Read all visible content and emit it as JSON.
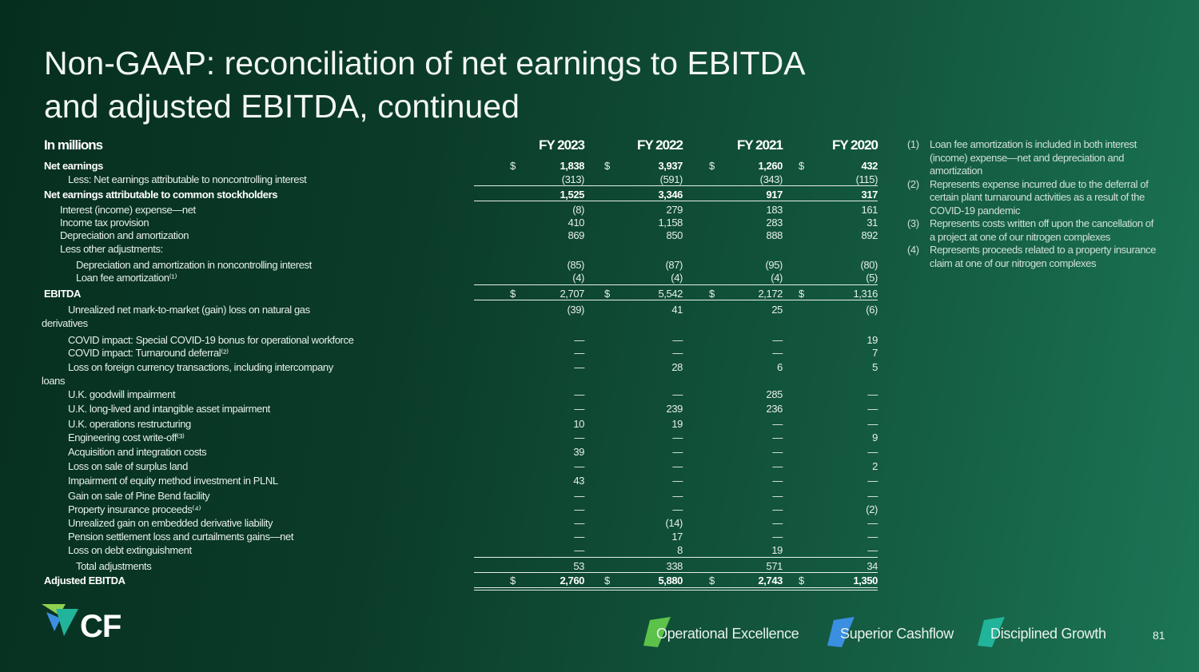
{
  "title": {
    "line1": "Non-GAAP: reconciliation of net earnings to EBITDA",
    "line2": "and adjusted EBITDA, continued"
  },
  "table": {
    "unit_label": "In millions",
    "columns": [
      "FY 2023",
      "FY 2022",
      "FY 2021",
      "FY 2020"
    ],
    "rows": [
      {
        "label": "Net earnings",
        "values": [
          "1,838",
          "3,937",
          "1,260",
          "432"
        ],
        "dollar": true,
        "bold": true
      },
      {
        "label": "Less: Net earnings attributable to noncontrolling interest",
        "values": [
          "(313)",
          "(591)",
          "(343)",
          "(115)"
        ]
      },
      {
        "label": "Net earnings attributable to common stockholders",
        "values": [
          "1,525",
          "3,346",
          "917",
          "317"
        ],
        "bold": true
      },
      {
        "label": "Interest (income) expense—net",
        "values": [
          "(8)",
          "279",
          "183",
          "161"
        ]
      },
      {
        "label": "Income tax provision",
        "values": [
          "410",
          "1,158",
          "283",
          "31"
        ]
      },
      {
        "label": "Depreciation and amortization",
        "values": [
          "869",
          "850",
          "888",
          "892"
        ]
      },
      {
        "label": "Less other adjustments:",
        "values": [
          "",
          "",
          "",
          ""
        ]
      },
      {
        "label": "Depreciation and amortization in noncontrolling interest",
        "values": [
          "(85)",
          "(87)",
          "(95)",
          "(80)"
        ]
      },
      {
        "label": "Loan fee amortization⁽¹⁾",
        "values": [
          "(4)",
          "(4)",
          "(4)",
          "(5)"
        ]
      },
      {
        "label": "EBITDA",
        "values": [
          "2,707",
          "5,542",
          "2,172",
          "1,316"
        ],
        "dollar": true
      },
      {
        "label": "Unrealized net mark-to-market (gain) loss on natural gas",
        "label_cont": "derivatives",
        "values": [
          "(39)",
          "41",
          "25",
          "(6)"
        ]
      },
      {
        "label": "COVID impact: Special COVID-19 bonus for operational workforce",
        "values": [
          "—",
          "—",
          "—",
          "19"
        ]
      },
      {
        "label": "COVID impact: Turnaround deferral⁽²⁾",
        "values": [
          "—",
          "—",
          "—",
          "7"
        ]
      },
      {
        "label": "Loss on foreign currency transactions, including intercompany",
        "label_cont": "loans",
        "values": [
          "—",
          "28",
          "6",
          "5"
        ]
      },
      {
        "label": "U.K. goodwill impairment",
        "values": [
          "—",
          "—",
          "285",
          "—"
        ]
      },
      {
        "label": "U.K. long-lived and intangible asset impairment",
        "values": [
          "—",
          "239",
          "236",
          "—"
        ]
      },
      {
        "label": "U.K. operations restructuring",
        "values": [
          "10",
          "19",
          "—",
          "—"
        ]
      },
      {
        "label": "Engineering cost write-off⁽³⁾",
        "values": [
          "—",
          "—",
          "—",
          "9"
        ]
      },
      {
        "label": "Acquisition and integration costs",
        "values": [
          "39",
          "—",
          "—",
          "—"
        ]
      },
      {
        "label": "Loss on sale of surplus land",
        "values": [
          "—",
          "—",
          "—",
          "2"
        ]
      },
      {
        "label": "Impairment of equity method investment in PLNL",
        "values": [
          "43",
          "—",
          "—",
          "—"
        ]
      },
      {
        "label": "Gain on sale of Pine Bend facility",
        "values": [
          "—",
          "—",
          "—",
          "—"
        ]
      },
      {
        "label": "Property insurance proceeds⁽⁴⁾",
        "values": [
          "—",
          "—",
          "—",
          "(2)"
        ]
      },
      {
        "label": "Unrealized gain on embedded derivative liability",
        "values": [
          "—",
          "(14)",
          "—",
          "—"
        ]
      },
      {
        "label": "Pension settlement loss and curtailments gains—net",
        "values": [
          "—",
          "17",
          "—",
          "—"
        ]
      },
      {
        "label": "Loss on debt extinguishment",
        "values": [
          "—",
          "8",
          "19",
          "—"
        ]
      },
      {
        "label": "Total adjustments",
        "values": [
          "53",
          "338",
          "571",
          "34"
        ]
      },
      {
        "label": "Adjusted EBITDA",
        "values": [
          "2,760",
          "5,880",
          "2,743",
          "1,350"
        ],
        "dollar": true,
        "bold": true
      }
    ]
  },
  "dollar_sign": "$",
  "footnotes": [
    {
      "num": "(1)",
      "text": "Loan fee amortization is included in both interest (income) expense—net and depreciation and amortization"
    },
    {
      "num": "(2)",
      "text": "Represents expense incurred due to the deferral of certain plant turnaround activities as a result of the COVID-19 pandemic"
    },
    {
      "num": "(3)",
      "text": "Represents costs written off upon the cancellation of a project at one of our nitrogen complexes"
    },
    {
      "num": "(4)",
      "text": "Represents proceeds related to a property insurance claim at one of our nitrogen complexes"
    }
  ],
  "footer": {
    "logo_text": "CF",
    "pillars": [
      {
        "label": "Operational Excellence",
        "color": "#5cc24a"
      },
      {
        "label": "Superior Cashflow",
        "color": "#3a8fe0"
      },
      {
        "label": "Disciplined Growth",
        "color": "#22b49a"
      }
    ],
    "page_number": "81"
  }
}
